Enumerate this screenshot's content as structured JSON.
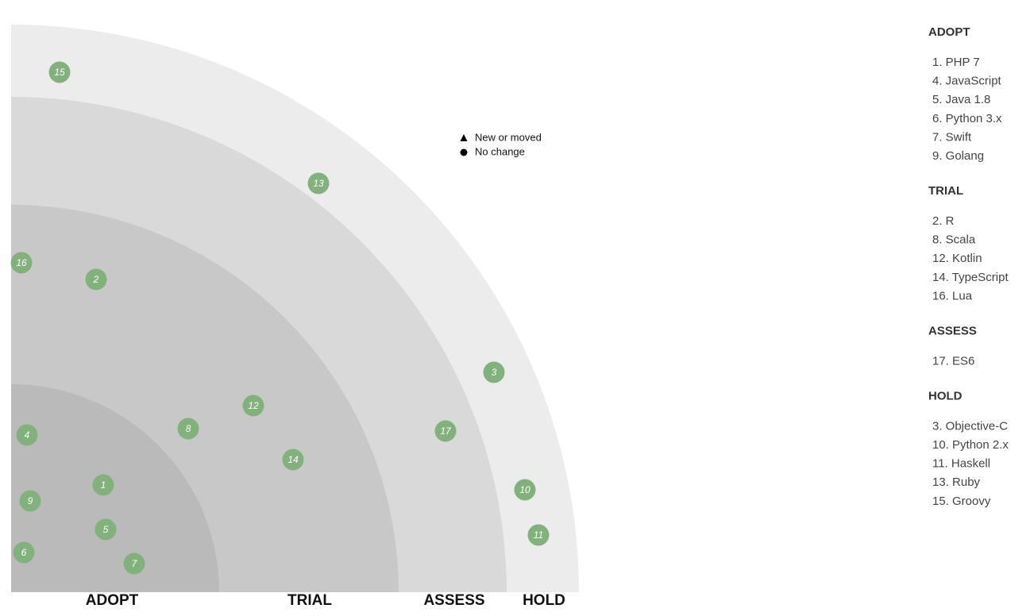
{
  "radar": {
    "rings": [
      "ADOPT",
      "TRIAL",
      "ASSESS",
      "HOLD"
    ],
    "legend": {
      "new": "New or moved",
      "unchanged": "No change"
    },
    "blips": [
      15,
      13,
      16,
      2,
      3,
      12,
      8,
      17,
      4,
      14,
      1,
      9,
      5,
      10,
      6,
      11,
      7
    ]
  },
  "sidebar": {
    "sections": [
      {
        "title": "ADOPT",
        "items": [
          "1. PHP 7",
          "4. JavaScript",
          "5. Java 1.8",
          "6. Python 3.x",
          "7. Swift",
          "9. Golang"
        ]
      },
      {
        "title": "TRIAL",
        "items": [
          "2. R",
          "8. Scala",
          "12. Kotlin",
          "14. TypeScript",
          "16. Lua"
        ]
      },
      {
        "title": "ASSESS",
        "items": [
          "17. ES6"
        ]
      },
      {
        "title": "HOLD",
        "items": [
          "3. Objective-C",
          "10. Python 2.x",
          "11. Haskell",
          "13. Ruby",
          "15. Groovy"
        ]
      }
    ]
  }
}
